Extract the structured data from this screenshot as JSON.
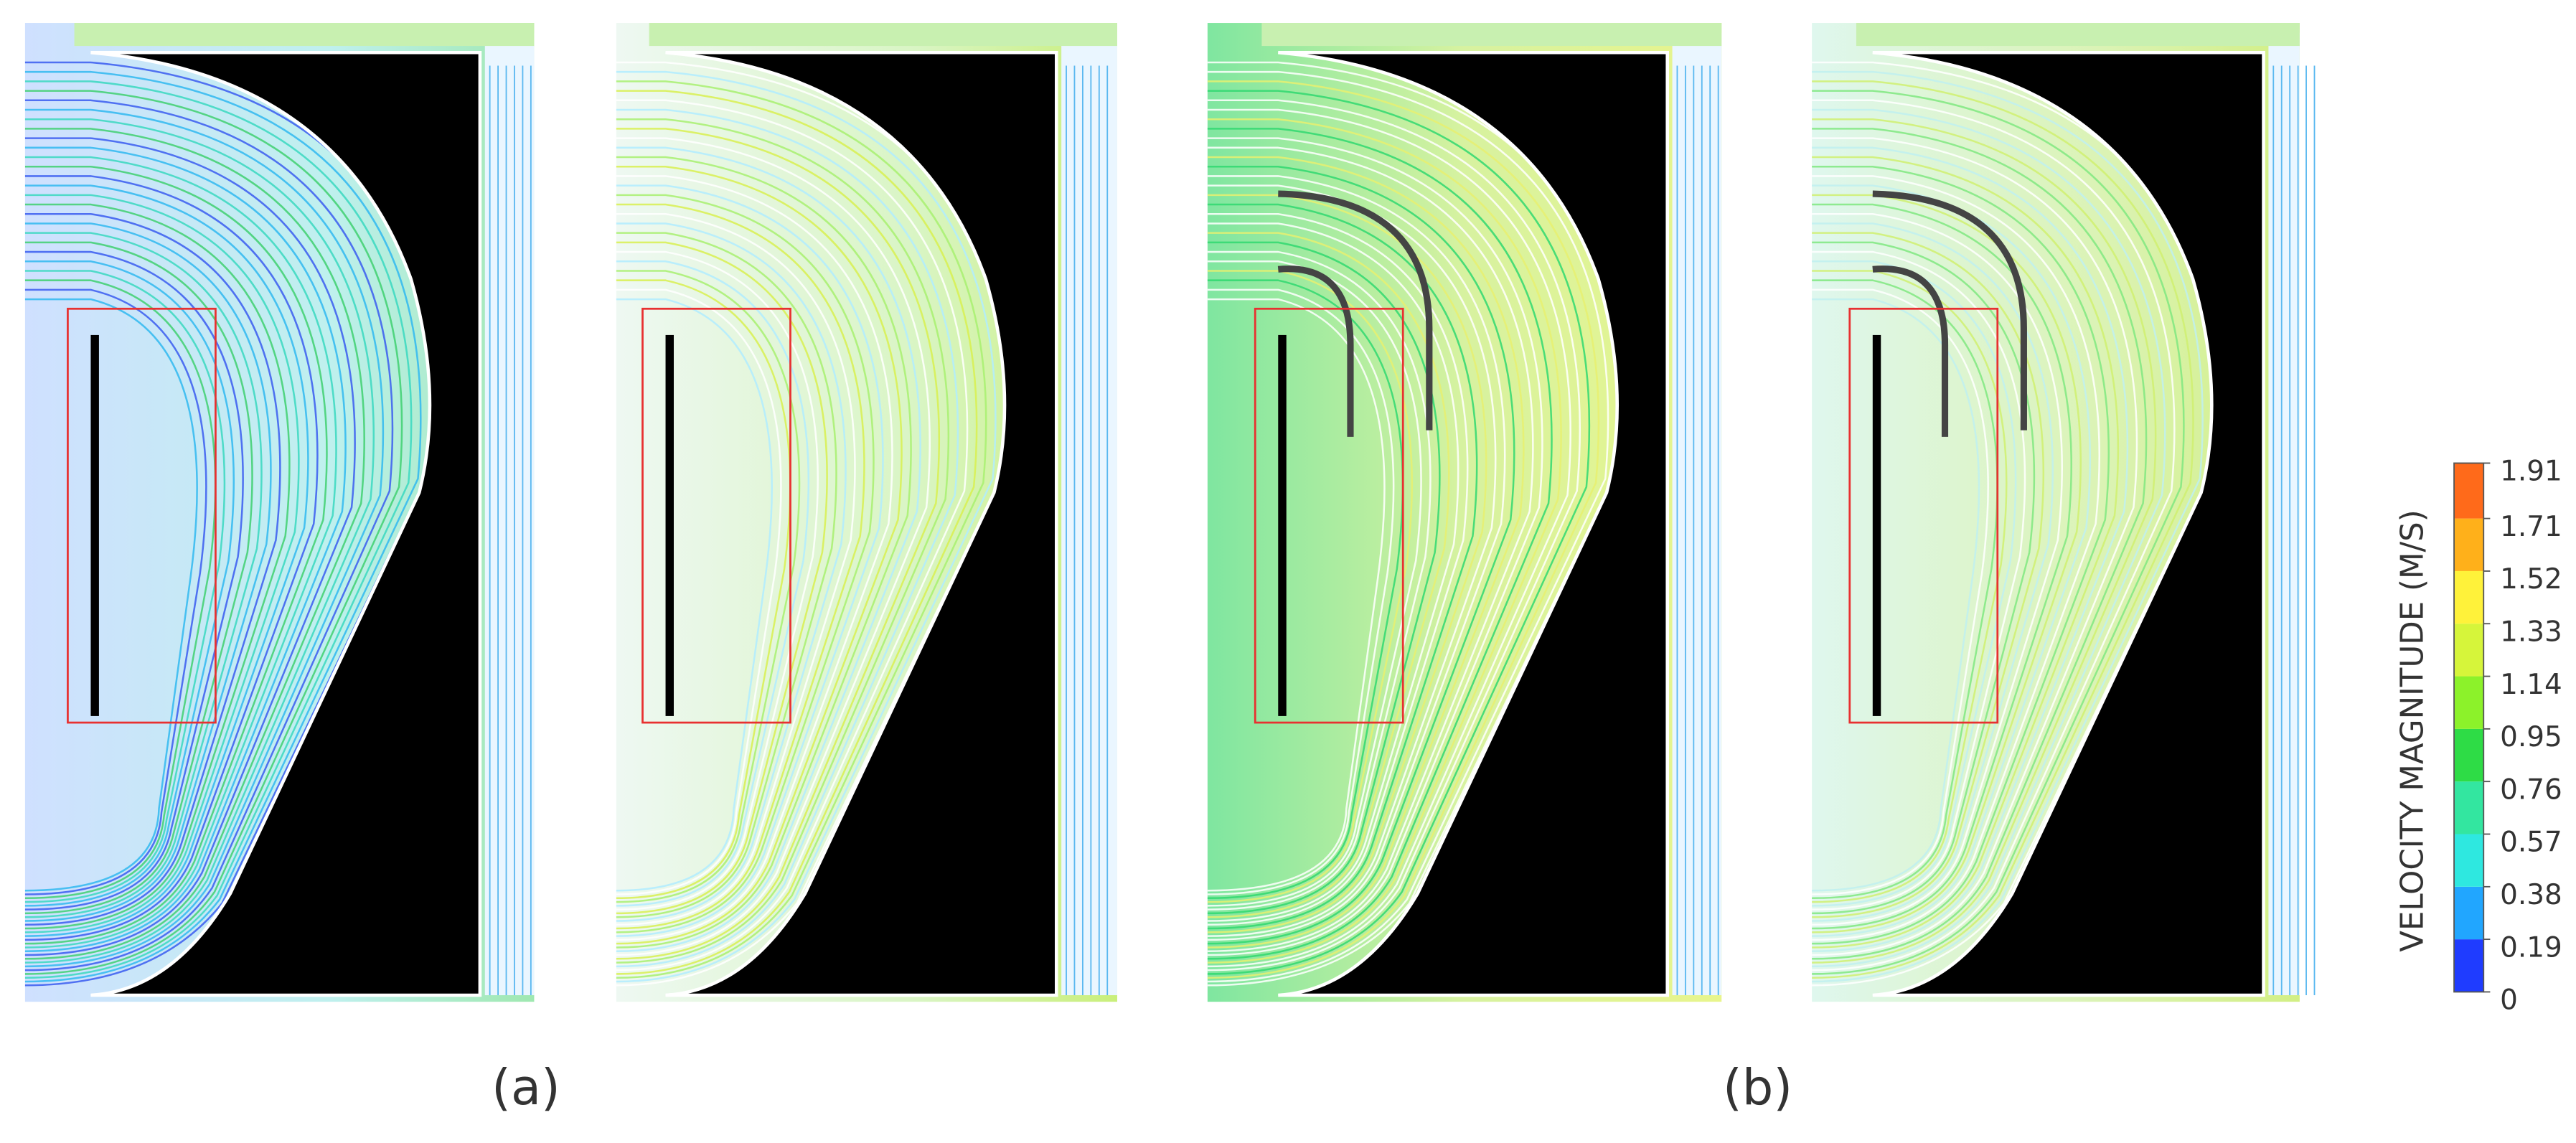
{
  "figure": {
    "labels": [
      "(a)",
      "(b)"
    ]
  },
  "colorbar": {
    "title": "VELOCITY MAGNITUDE (M/S)",
    "ticks": [
      0,
      0.19,
      0.38,
      0.57,
      0.76,
      0.95,
      1.14,
      1.33,
      1.52,
      1.71,
      1.91
    ],
    "colors": [
      "#1f3cff",
      "#21a6ff",
      "#2ee8e0",
      "#33e6a0",
      "#2edc46",
      "#8cf22a",
      "#d6f53a",
      "#fff23a",
      "#ffb01a",
      "#ff6a1a"
    ]
  }
}
